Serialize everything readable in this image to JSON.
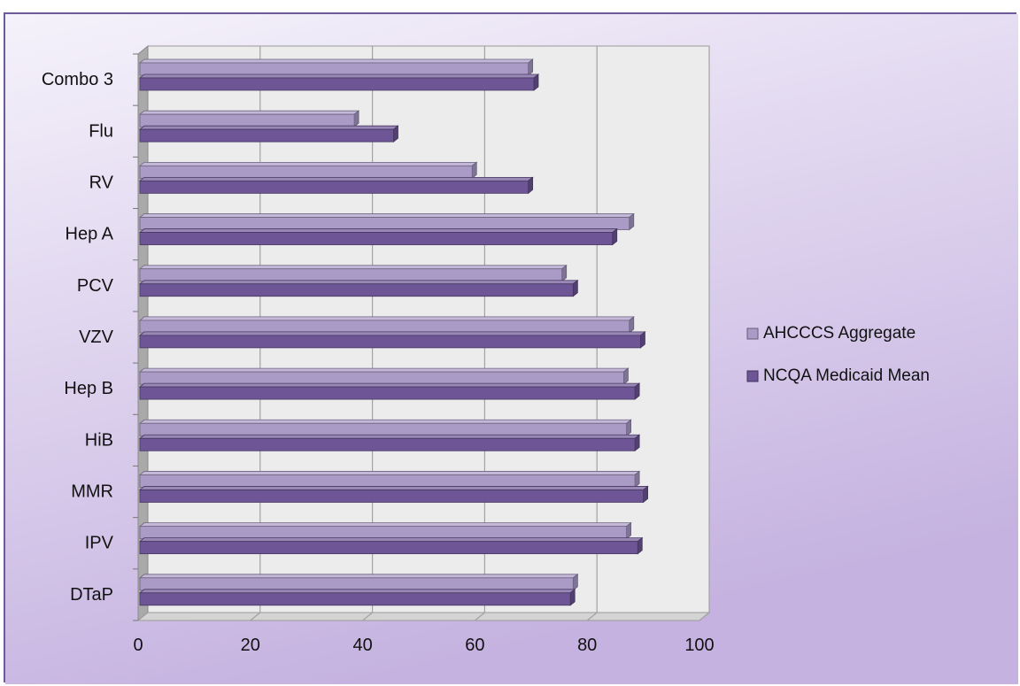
{
  "chart_data": {
    "type": "bar",
    "orientation": "horizontal",
    "style": "3d-clustered",
    "categories": [
      "Combo 3",
      "Flu",
      "RV",
      "Hep A",
      "PCV",
      "VZV",
      "Hep B",
      "HiB",
      "MMR",
      "IPV",
      "DTaP"
    ],
    "series": [
      {
        "name": "AHCCCS Aggregate",
        "values": [
          69.5,
          38.5,
          59.5,
          87.5,
          75.5,
          87.5,
          86.5,
          87,
          88.5,
          87,
          77.5
        ]
      },
      {
        "name": "NCQA Medicaid Mean",
        "values": [
          70.5,
          45.5,
          69.5,
          84.5,
          77.5,
          89.5,
          88.5,
          88.5,
          90,
          89,
          77
        ]
      }
    ],
    "x_ticks": [
      "0",
      "20",
      "40",
      "60",
      "80",
      "100"
    ],
    "xlim": [
      0,
      100
    ],
    "grid": true,
    "legend_position": "right",
    "colors": {
      "AHCCCS Aggregate": "#a99ac6",
      "NCQA Medicaid Mean": "#6d5596",
      "background_top": "#f4f0fa",
      "background_bottom": "#c7b4e1",
      "plot_wall": "#ececec",
      "frame": "#6e5a98"
    }
  }
}
